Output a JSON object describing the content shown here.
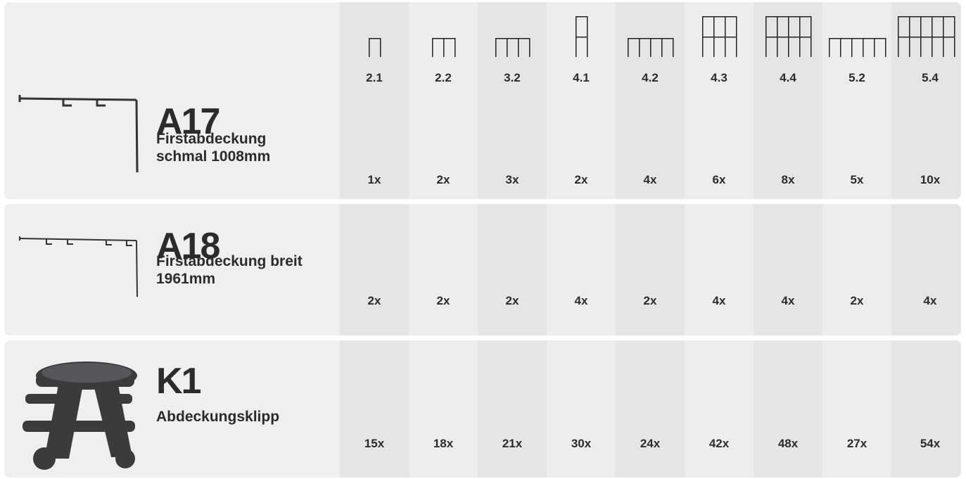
{
  "columns": [
    "2.1",
    "2.2",
    "3.2",
    "4.1",
    "4.2",
    "4.3",
    "4.4",
    "5.2",
    "5.4"
  ],
  "rows": [
    {
      "code": "A17",
      "name_lines": [
        "Firstabdeckung",
        "schmal 1008mm"
      ],
      "quantities": [
        "1x",
        "2x",
        "3x",
        "2x",
        "4x",
        "6x",
        "8x",
        "5x",
        "10x"
      ]
    },
    {
      "code": "A18",
      "name_lines": [
        "Firstabdeckung breit",
        "1961mm"
      ],
      "quantities": [
        "2x",
        "2x",
        "2x",
        "4x",
        "2x",
        "4x",
        "4x",
        "2x",
        "4x"
      ]
    },
    {
      "code": "K1",
      "name_lines": [
        "Abdeckungsklipp"
      ],
      "quantities": [
        "15x",
        "18x",
        "21x",
        "30x",
        "24x",
        "42x",
        "48x",
        "27x",
        "54x"
      ]
    }
  ]
}
